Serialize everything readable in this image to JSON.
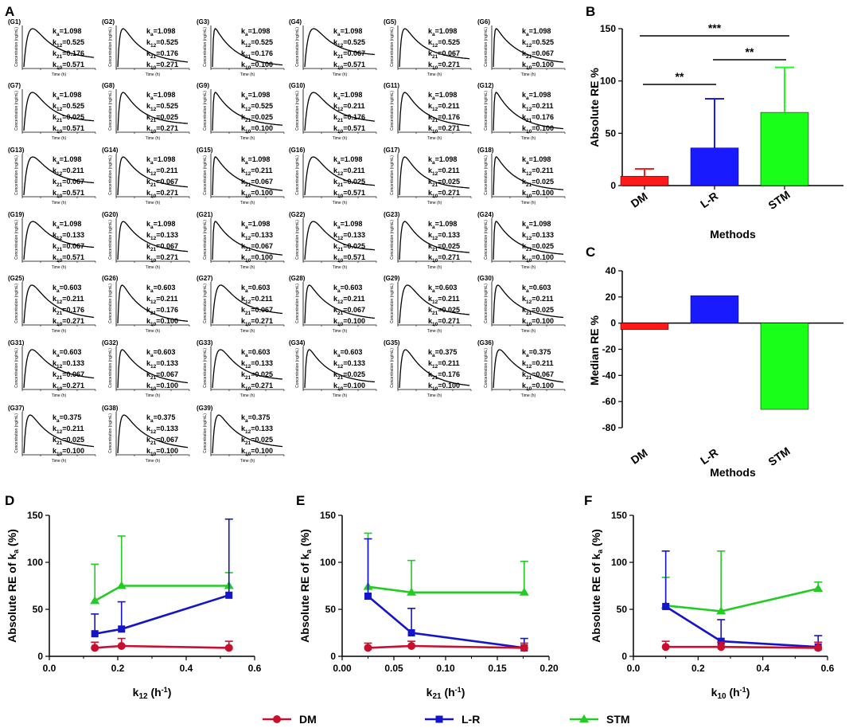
{
  "panels": {
    "A": {
      "label": "A",
      "y_axis": "Concentration (ng/mL)",
      "x_axis": "Time (h)",
      "groups": [
        {
          "id": "(G1)",
          "ka": "1.098",
          "k12": "0.525",
          "k21": "0.176",
          "k10": "0.571"
        },
        {
          "id": "(G2)",
          "ka": "1.098",
          "k12": "0.525",
          "k21": "0.176",
          "k10": "0.271"
        },
        {
          "id": "(G3)",
          "ka": "1.098",
          "k12": "0.525",
          "k21": "0.176",
          "k10": "0.100"
        },
        {
          "id": "(G4)",
          "ka": "1.098",
          "k12": "0.525",
          "k21": "0.067",
          "k10": "0.571"
        },
        {
          "id": "(G5)",
          "ka": "1.098",
          "k12": "0.525",
          "k21": "0.067",
          "k10": "0.271"
        },
        {
          "id": "(G6)",
          "ka": "1.098",
          "k12": "0.525",
          "k21": "0.067",
          "k10": "0.100"
        },
        {
          "id": "(G7)",
          "ka": "1.098",
          "k12": "0.525",
          "k21": "0.025",
          "k10": "0.571"
        },
        {
          "id": "(G8)",
          "ka": "1.098",
          "k12": "0.525",
          "k21": "0.025",
          "k10": "0.271"
        },
        {
          "id": "(G9)",
          "ka": "1.098",
          "k12": "0.525",
          "k21": "0.025",
          "k10": "0.100"
        },
        {
          "id": "(G10)",
          "ka": "1.098",
          "k12": "0.211",
          "k21": "0.176",
          "k10": "0.571"
        },
        {
          "id": "(G11)",
          "ka": "1.098",
          "k12": "0.211",
          "k21": "0.176",
          "k10": "0.271"
        },
        {
          "id": "(G12)",
          "ka": "1.098",
          "k12": "0.211",
          "k21": "0.176",
          "k10": "0.100"
        },
        {
          "id": "(G13)",
          "ka": "1.098",
          "k12": "0.211",
          "k21": "0.067",
          "k10": "0.571"
        },
        {
          "id": "(G14)",
          "ka": "1.098",
          "k12": "0.211",
          "k21": "0.067",
          "k10": "0.271"
        },
        {
          "id": "(G15)",
          "ka": "1.098",
          "k12": "0.211",
          "k21": "0.067",
          "k10": "0.100"
        },
        {
          "id": "(G16)",
          "ka": "1.098",
          "k12": "0.211",
          "k21": "0.025",
          "k10": "0.571"
        },
        {
          "id": "(G17)",
          "ka": "1.098",
          "k12": "0.211",
          "k21": "0.025",
          "k10": "0.271"
        },
        {
          "id": "(G18)",
          "ka": "1.098",
          "k12": "0.211",
          "k21": "0.025",
          "k10": "0.100"
        },
        {
          "id": "(G19)",
          "ka": "1.098",
          "k12": "0.133",
          "k21": "0.067",
          "k10": "0.571"
        },
        {
          "id": "(G20)",
          "ka": "1.098",
          "k12": "0.133",
          "k21": "0.067",
          "k10": "0.271"
        },
        {
          "id": "(G21)",
          "ka": "1.098",
          "k12": "0.133",
          "k21": "0.067",
          "k10": "0.100"
        },
        {
          "id": "(G22)",
          "ka": "1.098",
          "k12": "0.133",
          "k21": "0.025",
          "k10": "0.571"
        },
        {
          "id": "(G23)",
          "ka": "1.098",
          "k12": "0.133",
          "k21": "0.025",
          "k10": "0.271"
        },
        {
          "id": "(G24)",
          "ka": "1.098",
          "k12": "0.133",
          "k21": "0.025",
          "k10": "0.100"
        },
        {
          "id": "(G25)",
          "ka": "0.603",
          "k12": "0.211",
          "k21": "0.176",
          "k10": "0.271"
        },
        {
          "id": "(G26)",
          "ka": "0.603",
          "k12": "0.211",
          "k21": "0.176",
          "k10": "0.100"
        },
        {
          "id": "(G27)",
          "ka": "0.603",
          "k12": "0.211",
          "k21": "0.067",
          "k10": "0.271"
        },
        {
          "id": "(G28)",
          "ka": "0.603",
          "k12": "0.211",
          "k21": "0.067",
          "k10": "0.100"
        },
        {
          "id": "(G29)",
          "ka": "0.603",
          "k12": "0.211",
          "k21": "0.025",
          "k10": "0.271"
        },
        {
          "id": "(G30)",
          "ka": "0.603",
          "k12": "0.211",
          "k21": "0.025",
          "k10": "0.100"
        },
        {
          "id": "(G31)",
          "ka": "0.603",
          "k12": "0.133",
          "k21": "0.067",
          "k10": "0.271"
        },
        {
          "id": "(G32)",
          "ka": "0.603",
          "k12": "0.133",
          "k21": "0.067",
          "k10": "0.100"
        },
        {
          "id": "(G33)",
          "ka": "0.603",
          "k12": "0.133",
          "k21": "0.025",
          "k10": "0.271"
        },
        {
          "id": "(G34)",
          "ka": "0.603",
          "k12": "0.133",
          "k21": "0.025",
          "k10": "0.100"
        },
        {
          "id": "(G35)",
          "ka": "0.375",
          "k12": "0.211",
          "k21": "0.176",
          "k10": "0.100"
        },
        {
          "id": "(G36)",
          "ka": "0.375",
          "k12": "0.211",
          "k21": "0.067",
          "k10": "0.100"
        },
        {
          "id": "(G37)",
          "ka": "0.375",
          "k12": "0.211",
          "k21": "0.025",
          "k10": "0.100"
        },
        {
          "id": "(G38)",
          "ka": "0.375",
          "k12": "0.133",
          "k21": "0.067",
          "k10": "0.100"
        },
        {
          "id": "(G39)",
          "ka": "0.375",
          "k12": "0.133",
          "k21": "0.025",
          "k10": "0.100"
        }
      ]
    },
    "B": {
      "label": "B"
    },
    "C": {
      "label": "C"
    },
    "D": {
      "label": "D"
    },
    "E": {
      "label": "E"
    },
    "F": {
      "label": "F"
    }
  },
  "legend": [
    {
      "name": "DM",
      "color": "#c8102e"
    },
    {
      "name": "L-R",
      "color": "#1414c8"
    },
    {
      "name": "STM",
      "color": "#22cc22"
    }
  ],
  "colors": {
    "DM": "#ff1a1a",
    "L-R": "#1a1aff",
    "STM": "#1aff1a",
    "DM_line": "#c8102e",
    "LR_line": "#1414c8",
    "STM_line": "#22cc22"
  },
  "chart_data": [
    {
      "id": "B",
      "type": "bar",
      "categories": [
        "DM",
        "L-R",
        "STM"
      ],
      "values": [
        9,
        36,
        70
      ],
      "errors": [
        7,
        47,
        43
      ],
      "ylabel": "Absolute RE %",
      "xlabel": "Methods",
      "ylim": [
        0,
        150
      ],
      "yticks": [
        0,
        50,
        100,
        150
      ],
      "significance": [
        {
          "from": "DM",
          "to": "L-R",
          "label": "**"
        },
        {
          "from": "L-R",
          "to": "STM",
          "label": "**"
        },
        {
          "from": "DM",
          "to": "STM",
          "label": "***"
        }
      ]
    },
    {
      "id": "C",
      "type": "bar",
      "categories": [
        "DM",
        "L-R",
        "STM"
      ],
      "values": [
        -5,
        21,
        -66
      ],
      "ylabel": "Median RE %",
      "xlabel": "Methods",
      "ylim": [
        -80,
        40
      ],
      "yticks": [
        -80,
        -60,
        -40,
        -20,
        0,
        20,
        40
      ]
    },
    {
      "id": "D",
      "type": "line",
      "x": [
        0.133,
        0.211,
        0.525
      ],
      "xlabel": "k12 (h-1)",
      "ylabel": "Absolute RE of ka (%)",
      "xlim": [
        0,
        0.6
      ],
      "ylim": [
        0,
        150
      ],
      "xticks": [
        "0.0",
        "0.2",
        "0.4",
        "0.6"
      ],
      "yticks": [
        "0",
        "50",
        "100",
        "150"
      ],
      "series": [
        {
          "name": "DM",
          "values": [
            9,
            11,
            9
          ],
          "errors": [
            6,
            8,
            7
          ]
        },
        {
          "name": "L-R",
          "values": [
            24,
            29,
            65
          ],
          "errors": [
            21,
            29,
            81
          ]
        },
        {
          "name": "STM",
          "values": [
            59,
            75,
            75
          ],
          "errors": [
            39,
            53,
            14
          ]
        }
      ]
    },
    {
      "id": "E",
      "type": "line",
      "x": [
        0.025,
        0.067,
        0.176
      ],
      "xlabel": "k21 (h-1)",
      "ylabel": "Absolute RE of ka (%)",
      "xlim": [
        0,
        0.2
      ],
      "ylim": [
        0,
        150
      ],
      "xticks": [
        "0.00",
        "0.05",
        "0.10",
        "0.15",
        "0.20"
      ],
      "yticks": [
        "0",
        "50",
        "100",
        "150"
      ],
      "series": [
        {
          "name": "DM",
          "values": [
            9,
            11,
            9
          ],
          "errors": [
            5,
            5,
            5
          ]
        },
        {
          "name": "L-R",
          "values": [
            64,
            25,
            9
          ],
          "errors": [
            61,
            26,
            10
          ]
        },
        {
          "name": "STM",
          "values": [
            74,
            68,
            68
          ],
          "errors": [
            57,
            34,
            33
          ]
        }
      ]
    },
    {
      "id": "F",
      "type": "line",
      "x": [
        0.1,
        0.271,
        0.571
      ],
      "xlabel": "k10 (h-1)",
      "ylabel": "Absolute RE of ka (%)",
      "xlim": [
        0,
        0.6
      ],
      "ylim": [
        0,
        150
      ],
      "xticks": [
        "0.0",
        "0.2",
        "0.4",
        "0.6"
      ],
      "yticks": [
        "0",
        "50",
        "100",
        "150"
      ],
      "series": [
        {
          "name": "DM",
          "values": [
            10,
            10,
            9
          ],
          "errors": [
            6,
            5,
            6
          ]
        },
        {
          "name": "L-R",
          "values": [
            53,
            16,
            10
          ],
          "errors": [
            59,
            23,
            12
          ]
        },
        {
          "name": "STM",
          "values": [
            54,
            48,
            72
          ],
          "errors": [
            30,
            64,
            7
          ]
        }
      ]
    }
  ]
}
